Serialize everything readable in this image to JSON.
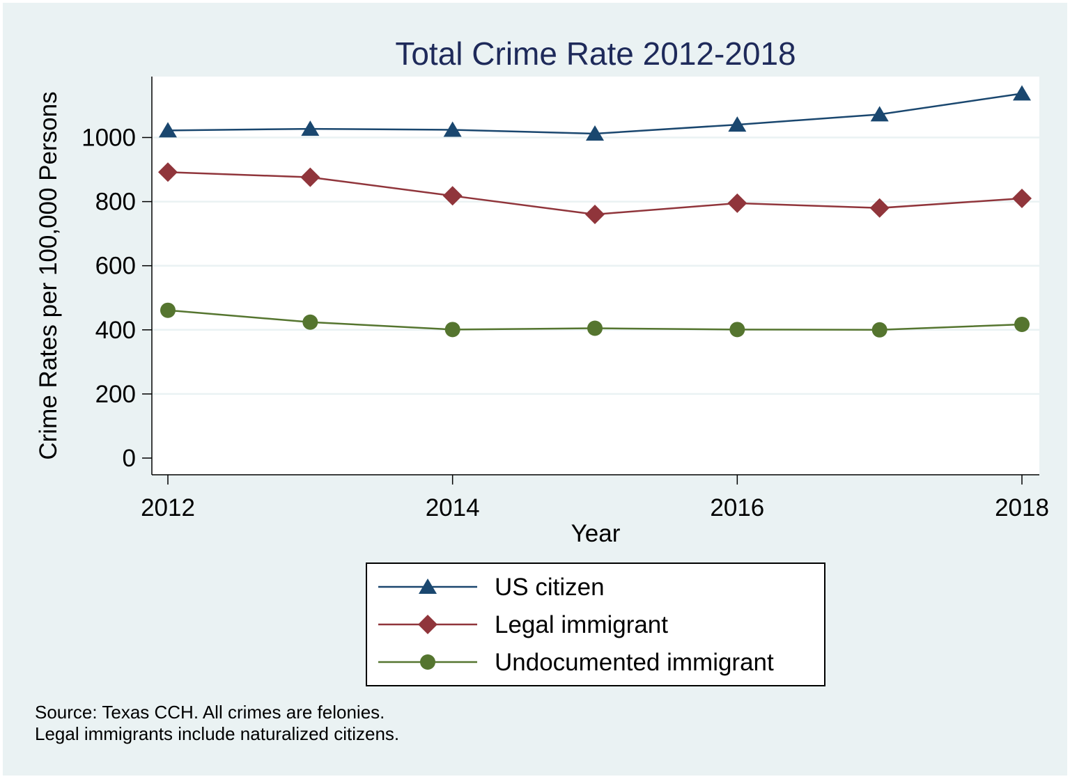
{
  "chart_data": {
    "type": "line",
    "title": "Total Crime Rate 2012-2018",
    "xlabel": "Year",
    "ylabel": "Crime Rates per 100,000 Persons",
    "x": [
      2012,
      2013,
      2014,
      2015,
      2016,
      2017,
      2018
    ],
    "x_ticks": [
      "2012",
      "2014",
      "2016",
      "2018"
    ],
    "y_ticks": [
      "0",
      "200",
      "400",
      "600",
      "800",
      "1000"
    ],
    "xlim": [
      2012,
      2018
    ],
    "ylim": [
      0,
      1130
    ],
    "grid": "horizontal",
    "legend_position": "bottom",
    "series": [
      {
        "name": "US citizen",
        "marker": "triangle",
        "color": "#1a476f",
        "values": [
          1022,
          1027,
          1024,
          1012,
          1040,
          1072,
          1137
        ]
      },
      {
        "name": "Legal immigrant",
        "marker": "diamond",
        "color": "#90353b",
        "values": [
          892,
          876,
          818,
          760,
          795,
          780,
          810
        ]
      },
      {
        "name": "Undocumented immigrant",
        "marker": "circle",
        "color": "#55752f",
        "values": [
          461,
          424,
          401,
          405,
          401,
          400,
          417
        ]
      }
    ],
    "notes": [
      "Source: Texas CCH. All crimes are felonies.",
      "Legal immigrants include naturalized citizens."
    ]
  }
}
